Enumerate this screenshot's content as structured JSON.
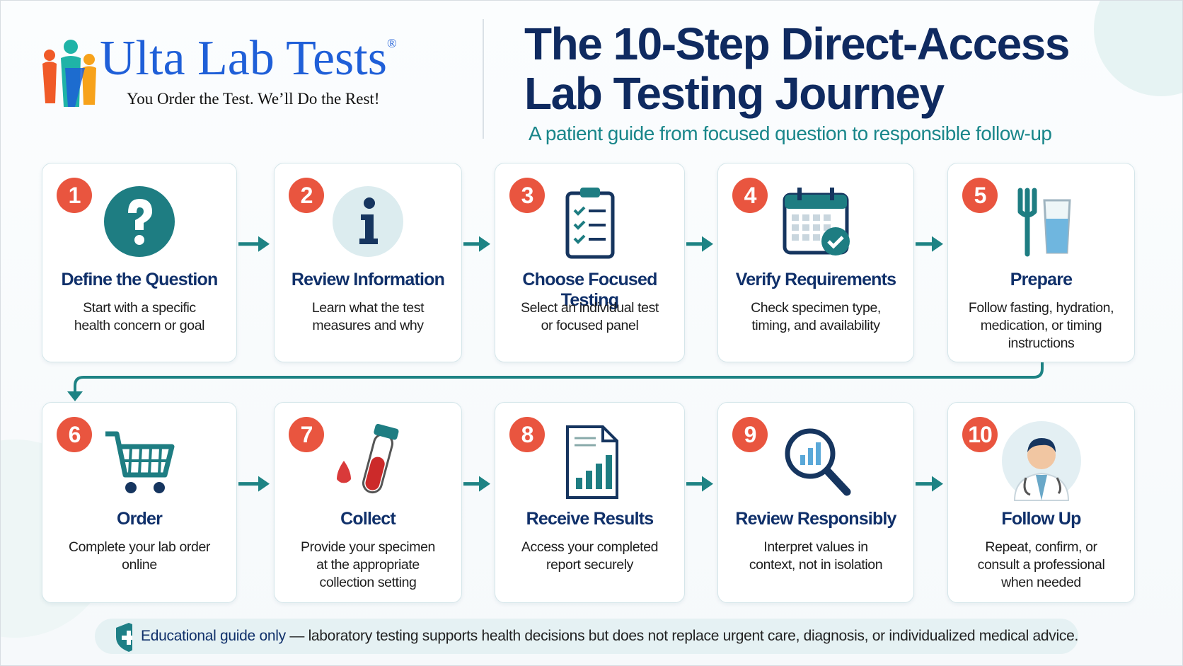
{
  "header": {
    "brand": "Ulta Lab Tests",
    "registered": "®",
    "tagline": "You Order the Test. We’ll Do the Rest!",
    "title_lines": [
      "The 10-Step Direct-Access",
      "Lab Testing Journey"
    ],
    "subtitle": "A patient guide from focused question to responsible follow-up"
  },
  "steps": [
    {
      "number": 1,
      "title": "Define the Question",
      "description": "Start with a specific health concern or goal"
    },
    {
      "number": 2,
      "title": "Review Information",
      "description": "Learn what the test measures and why"
    },
    {
      "number": 3,
      "title": "Choose Focused Testing",
      "description": "Select an individual test or focused panel"
    },
    {
      "number": 4,
      "title": "Verify Requirements",
      "description": "Check specimen type, timing, and availability"
    },
    {
      "number": 5,
      "title": "Prepare",
      "description": "Follow fasting, hydration, medication, or timing instructions"
    },
    {
      "number": 6,
      "title": "Order",
      "description": "Complete your lab order online"
    },
    {
      "number": 7,
      "title": "Collect",
      "description": "Provide your specimen at the appropriate collection setting"
    },
    {
      "number": 8,
      "title": "Receive Results",
      "description": "Access your completed report securely"
    },
    {
      "number": 9,
      "title": "Review Responsibly",
      "description": "Interpret values in context, not in isolation"
    },
    {
      "number": 10,
      "title": "Follow Up",
      "description": "Repeat, confirm, or consult a professional when needed"
    }
  ],
  "footer": {
    "emphasis": "Educational guide only",
    "text": "— laboratory testing supports health decisions but does not replace urgent care, diagnosis, or individualized medical advice."
  }
}
